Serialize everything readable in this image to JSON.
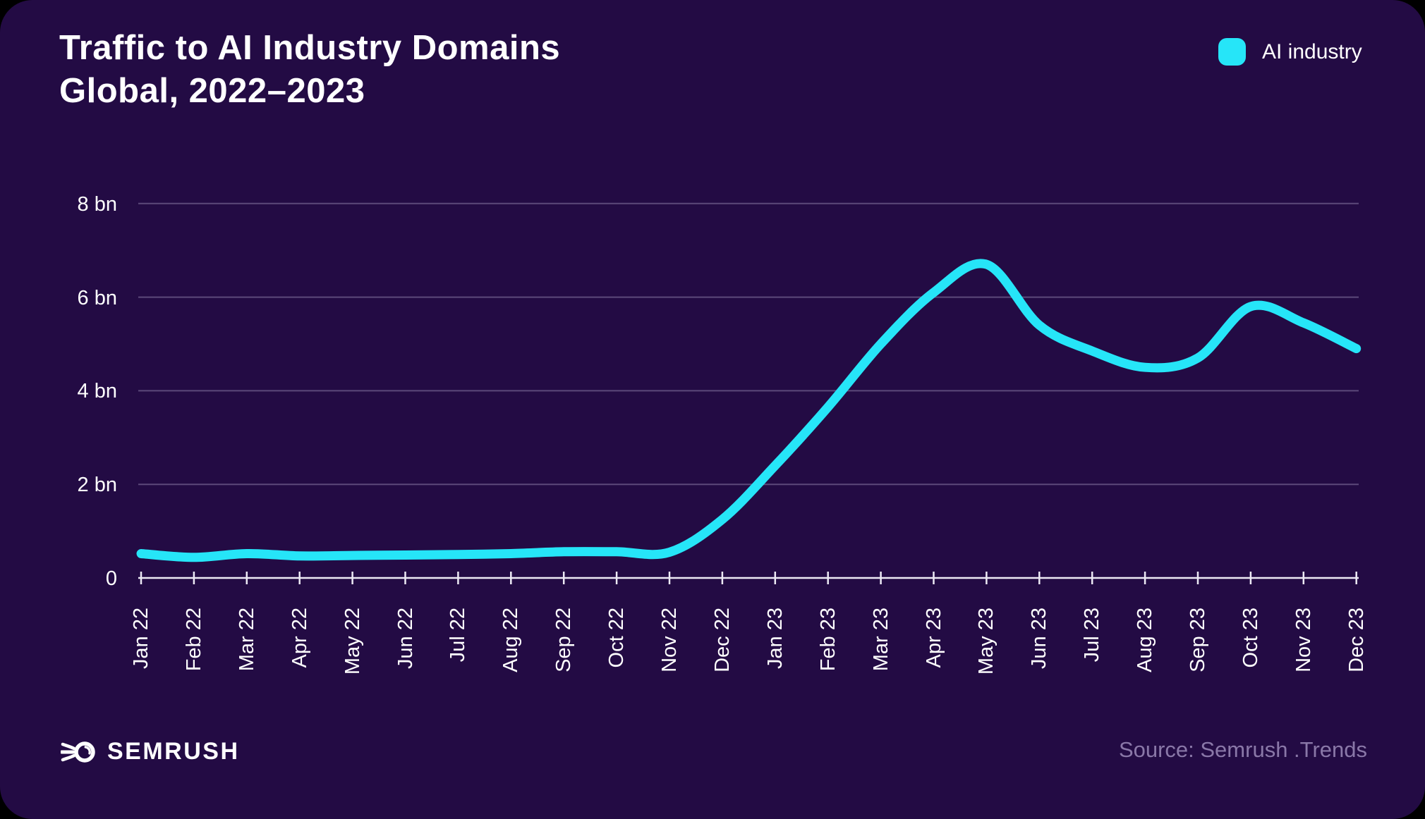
{
  "title": {
    "line1": "Traffic to AI Industry Domains",
    "line2": "Global, 2022–2023"
  },
  "legend": {
    "label": "AI industry",
    "swatch_color": "#26E5F8"
  },
  "chart_data": {
    "type": "line",
    "title": "Traffic to AI Industry Domains, Global, 2022–2023",
    "x": [
      "Jan 22",
      "Feb 22",
      "Mar 22",
      "Apr 22",
      "May 22",
      "Jun 22",
      "Jul 22",
      "Aug 22",
      "Sep 22",
      "Oct 22",
      "Nov 22",
      "Dec 22",
      "Jan 23",
      "Feb 23",
      "Mar 23",
      "Apr 23",
      "May 23",
      "Jun 23",
      "Jul 23",
      "Aug 23",
      "Sep 23",
      "Oct 23",
      "Nov 23",
      "Dec 23"
    ],
    "series": [
      {
        "name": "AI industry",
        "color": "#26E5F8",
        "unit": "bn visits",
        "values": [
          0.52,
          0.44,
          0.52,
          0.47,
          0.48,
          0.49,
          0.5,
          0.52,
          0.56,
          0.56,
          0.55,
          1.25,
          2.4,
          3.65,
          5.0,
          6.1,
          6.7,
          5.4,
          4.85,
          4.5,
          4.7,
          5.8,
          5.45,
          4.9
        ]
      }
    ],
    "y_tick_labels": [
      "8 bn",
      "6 bn",
      "4 bn",
      "2 bn",
      "0"
    ],
    "y_tick_values": [
      8,
      6,
      4,
      2,
      0
    ],
    "ylim": [
      0,
      8
    ],
    "grid": "horizontal",
    "legend_position": "top-right",
    "xlabel": "",
    "ylabel": ""
  },
  "footer": {
    "logo_text": "SEMRUSH",
    "source": "Source: Semrush .Trends"
  },
  "colors": {
    "card_background": "#230B44",
    "outer_background": "#000000",
    "line": "#26E5F8",
    "gridline": "rgba(214,205,235,0.32)",
    "axis": "#EDEAF5",
    "text": "#FFFFFF",
    "muted_text": "#8A78A8"
  }
}
